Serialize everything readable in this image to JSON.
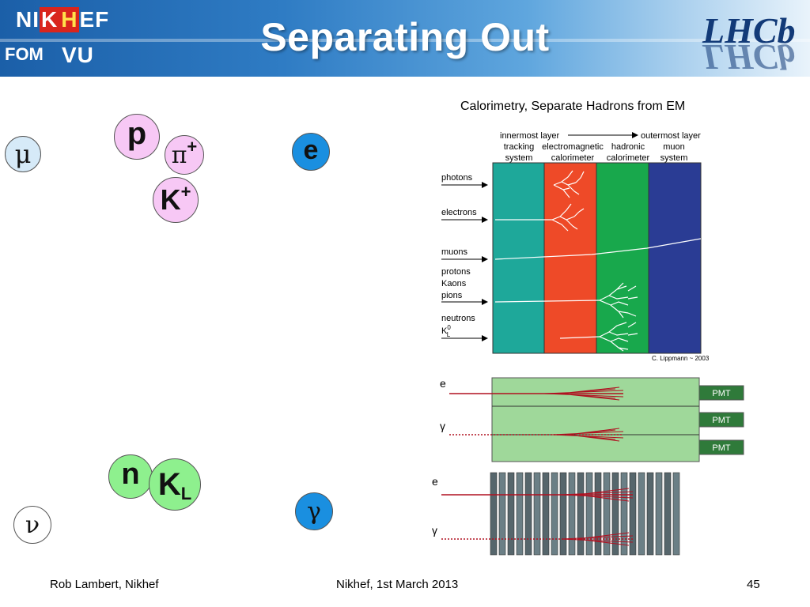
{
  "slide": {
    "title": "Separating Out",
    "caption": "Calorimetry, Separate Hadrons from EM"
  },
  "logos": {
    "nikhef_left": "NI",
    "nikhef_k": "K",
    "nikhef_h": "H",
    "nikhef_right": "EF",
    "fom": "FOM",
    "vu": "VU",
    "lhcb": "LHCb"
  },
  "particles": {
    "mu": "μ",
    "p": "p",
    "pi_plus": "π",
    "pi_plus_charge": "+",
    "k_plus": "K",
    "k_plus_charge": "+",
    "e": "e",
    "n": "n",
    "k_l": "K",
    "k_l_sub": "L",
    "gamma": "γ",
    "nu": "ν"
  },
  "detector_diagram": {
    "header_left": "innermost layer",
    "header_right": "outermost layer",
    "columns": [
      [
        "tracking",
        "system"
      ],
      [
        "electromagnetic",
        "calorimeter"
      ],
      [
        "hadronic",
        "calorimeter"
      ],
      [
        "muon",
        "system"
      ]
    ],
    "rows": [
      "photons",
      "electrons",
      "muons",
      "protons",
      "Kaons",
      "pions",
      "neutrons",
      "K"
    ],
    "k_sub": "L",
    "k_sup": "0",
    "credit": "C. Lippmann ~ 2003",
    "colors": {
      "tracking": "#1ea89a",
      "em": "#ee4a28",
      "hadronic": "#18a84c",
      "muon": "#2a3c94"
    }
  },
  "calorimeter_panel": {
    "e_label": "e",
    "gamma_label": "γ",
    "pmt_labels": [
      "PMT",
      "PMT",
      "PMT"
    ]
  },
  "sampling_panel": {
    "e_label": "e",
    "gamma_label": "γ"
  },
  "footer": {
    "author": "Rob Lambert, Nikhef",
    "date": "Nikhef, 1st March 2013",
    "page": "45"
  }
}
